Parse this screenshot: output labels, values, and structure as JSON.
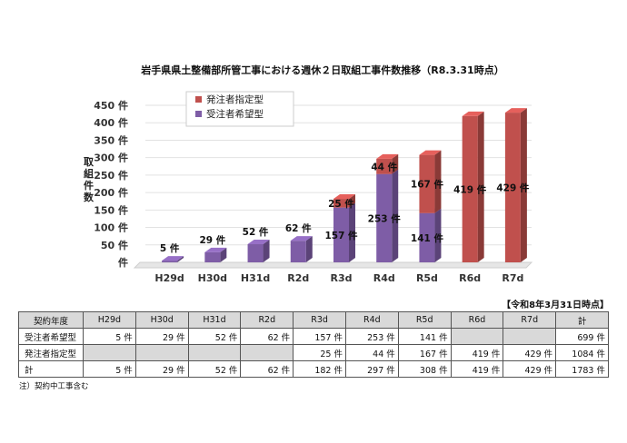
{
  "chart_data": {
    "type": "bar",
    "title": "岩手県県土整備部所管工事における週休２日取組工事件数推移（R8.3.31時点）",
    "ylabel": "取組件数",
    "ylim": [
      0,
      450
    ],
    "yticks": [
      "件",
      "50 件",
      "100 件",
      "150 件",
      "200 件",
      "250 件",
      "300 件",
      "350 件",
      "400 件",
      "450 件"
    ],
    "categories": [
      "H29d",
      "H30d",
      "H31d",
      "R2d",
      "R3d",
      "R4d",
      "R5d",
      "R6d",
      "R7d"
    ],
    "stacked": true,
    "series": [
      {
        "name": "受注者希望型",
        "color": "#7e5da6",
        "values": [
          5,
          29,
          52,
          62,
          157,
          253,
          141,
          0,
          0
        ]
      },
      {
        "name": "発注者指定型",
        "color": "#c0504d",
        "values": [
          0,
          0,
          0,
          0,
          25,
          44,
          167,
          419,
          429
        ]
      }
    ],
    "legend": [
      "発注者指定型",
      "受注者希望型"
    ],
    "legend_position": "top-left",
    "labels": {
      "受注者希望型": [
        "5 件",
        "29 件",
        "52 件",
        "62 件",
        "157 件",
        "253 件",
        "141 件",
        "",
        ""
      ],
      "発注者指定型": [
        "",
        "",
        "",
        "",
        "25 件",
        "44 件",
        "167 件",
        "419 件",
        "429 件"
      ]
    }
  },
  "table": {
    "note": "【令和8年3月31日時点】",
    "header": [
      "契約年度",
      "H29d",
      "H30d",
      "H31d",
      "R2d",
      "R3d",
      "R4d",
      "R5d",
      "R6d",
      "R7d",
      "計"
    ],
    "rows": [
      [
        "受注者希望型",
        "5 件",
        "29 件",
        "52 件",
        "62 件",
        "157 件",
        "253 件",
        "141 件",
        "",
        "",
        "699 件"
      ],
      [
        "発注者指定型",
        "",
        "",
        "",
        "",
        "25 件",
        "44 件",
        "167 件",
        "419 件",
        "429 件",
        "1084 件"
      ],
      [
        "計",
        "5 件",
        "29 件",
        "52 件",
        "62 件",
        "182 件",
        "297 件",
        "308 件",
        "419 件",
        "429 件",
        "1783 件"
      ]
    ]
  },
  "footnote": "注）契約中工事含む"
}
